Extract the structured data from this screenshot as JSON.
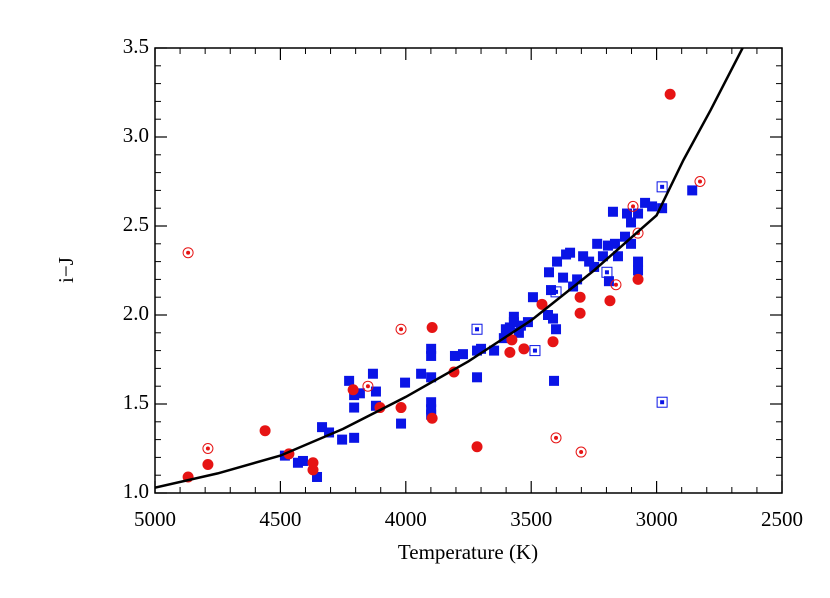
{
  "chart_data": {
    "type": "scatter",
    "xlabel": "Temperature (K)",
    "ylabel": "i−J",
    "xlim": [
      5000,
      2500
    ],
    "ylim": [
      1.0,
      3.5
    ],
    "xticks": [
      5000,
      4500,
      4000,
      3500,
      3000,
      2500
    ],
    "yticks": [
      {
        "value": 1.0,
        "label": "1.0"
      },
      {
        "value": 1.5,
        "label": "1.5"
      },
      {
        "value": 2.0,
        "label": "2.0"
      },
      {
        "value": 2.5,
        "label": "2.5"
      },
      {
        "value": 3.0,
        "label": "3.0"
      },
      {
        "value": 3.5,
        "label": "3.5"
      }
    ],
    "series": [
      {
        "marker": "square",
        "style": "filled",
        "color": "#0a14e6",
        "x": [
          4482,
          4430,
          4410,
          4354,
          4334,
          4306,
          4254,
          4226,
          4206,
          4206,
          4206,
          4183,
          4131,
          4119,
          4119,
          4019,
          4003,
          3939,
          3899,
          3899,
          3899,
          3899,
          3899,
          3899,
          3804,
          3772,
          3716,
          3716,
          3700,
          3648,
          3609,
          3601,
          3585,
          3569,
          3569,
          3549,
          3541,
          3513,
          3493,
          3433,
          3429,
          3421,
          3413,
          3401,
          3409,
          3397,
          3373,
          3361,
          3345,
          3333,
          3317,
          3293,
          3269,
          3249,
          3237,
          3214,
          3194,
          3190,
          3174,
          3166,
          3154,
          3126,
          3118,
          3102,
          3102,
          3074,
          3074,
          3074,
          3046,
          3018,
          2978,
          2858
        ],
        "values": [
          1.21,
          1.17,
          1.18,
          1.09,
          1.37,
          1.34,
          1.3,
          1.63,
          1.55,
          1.48,
          1.31,
          1.56,
          1.67,
          1.57,
          1.49,
          1.39,
          1.62,
          1.67,
          1.81,
          1.77,
          1.65,
          1.51,
          1.47,
          1.44,
          1.77,
          1.78,
          1.65,
          1.8,
          1.81,
          1.8,
          1.87,
          1.92,
          1.93,
          1.96,
          1.99,
          1.9,
          1.94,
          1.96,
          2.1,
          2.0,
          2.24,
          2.14,
          1.98,
          1.92,
          1.63,
          2.3,
          2.21,
          2.34,
          2.35,
          2.16,
          2.2,
          2.33,
          2.3,
          2.27,
          2.4,
          2.33,
          2.39,
          2.19,
          2.58,
          2.4,
          2.33,
          2.44,
          2.57,
          2.52,
          2.4,
          2.57,
          2.3,
          2.25,
          2.63,
          2.61,
          2.6,
          2.7
        ]
      },
      {
        "marker": "square",
        "style": "open",
        "color": "#0a14e6",
        "x": [
          3716,
          3485,
          3401,
          3198,
          2978,
          2978
        ],
        "values": [
          1.92,
          1.8,
          2.13,
          2.24,
          2.72,
          1.51
        ]
      },
      {
        "marker": "circle",
        "style": "filled",
        "color": "#e61414",
        "x": [
          4868,
          4789,
          4561,
          4466,
          4370,
          4370,
          4210,
          4103,
          4019,
          3895,
          3895,
          3808,
          3716,
          3585,
          3577,
          3529,
          3457,
          3413,
          3305,
          3305,
          3186,
          3074,
          2946
        ],
        "values": [
          1.09,
          1.16,
          1.35,
          1.22,
          1.17,
          1.13,
          1.58,
          1.48,
          1.48,
          1.93,
          1.42,
          1.68,
          1.26,
          1.79,
          1.86,
          1.81,
          2.06,
          1.85,
          2.1,
          2.01,
          2.08,
          2.2,
          3.24
        ]
      },
      {
        "marker": "circle",
        "style": "open",
        "color": "#e61414",
        "x": [
          4868,
          4789,
          4151,
          4019,
          3401,
          3301,
          3162,
          3094,
          3074,
          2827
        ],
        "values": [
          2.35,
          1.25,
          1.6,
          1.92,
          1.31,
          1.23,
          2.17,
          2.61,
          2.46,
          2.75
        ]
      },
      {
        "marker": "line",
        "color": "#000000",
        "x": [
          5000,
          4750,
          4500,
          4250,
          4000,
          3750,
          3500,
          3250,
          3000,
          2893,
          2785,
          2657
        ],
        "values": [
          1.03,
          1.11,
          1.21,
          1.36,
          1.54,
          1.74,
          1.97,
          2.25,
          2.56,
          2.87,
          3.15,
          3.5
        ]
      }
    ]
  }
}
